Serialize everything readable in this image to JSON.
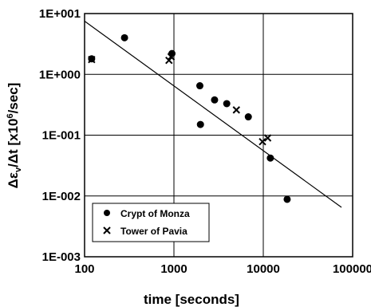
{
  "chart_data": {
    "type": "scatter",
    "title": "",
    "xlabel": "time [seconds]",
    "ylabel": "Δεᵥ/Δt  [x10⁶/sec]",
    "xscale": "log",
    "yscale": "log",
    "xlim": [
      100,
      100000
    ],
    "ylim": [
      0.001,
      10
    ],
    "x_ticks": [
      "100",
      "1000",
      "10000",
      "100000"
    ],
    "y_ticks": [
      "1E+001",
      "1E+000",
      "1E-001",
      "1E-002",
      "1E-003"
    ],
    "grid": true,
    "legend_position": "bottom-left",
    "series": [
      {
        "name": "Crypt of Monza",
        "marker": "circle",
        "points": [
          {
            "x": 120,
            "y": 1.8
          },
          {
            "x": 280,
            "y": 4.0
          },
          {
            "x": 950,
            "y": 2.2
          },
          {
            "x": 1950,
            "y": 0.65
          },
          {
            "x": 1980,
            "y": 0.15
          },
          {
            "x": 2850,
            "y": 0.38
          },
          {
            "x": 3900,
            "y": 0.33
          },
          {
            "x": 6800,
            "y": 0.2
          },
          {
            "x": 12000,
            "y": 0.042
          },
          {
            "x": 18500,
            "y": 0.0088
          }
        ]
      },
      {
        "name": "Tower of Pavia",
        "marker": "x",
        "points": [
          {
            "x": 120,
            "y": 1.75
          },
          {
            "x": 880,
            "y": 1.7
          },
          {
            "x": 930,
            "y": 1.95
          },
          {
            "x": 5000,
            "y": 0.26
          },
          {
            "x": 9800,
            "y": 0.078
          },
          {
            "x": 11200,
            "y": 0.09
          }
        ]
      }
    ],
    "trendline": {
      "type": "power",
      "points": [
        {
          "x": 100,
          "y": 7.5
        },
        {
          "x": 75000,
          "y": 0.0065
        }
      ]
    }
  }
}
